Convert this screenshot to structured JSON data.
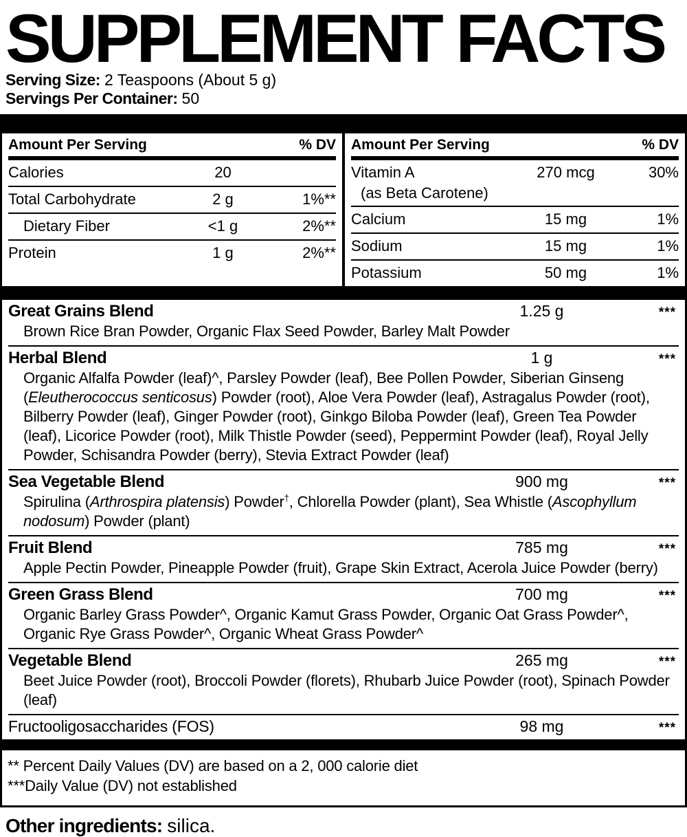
{
  "title": "SUPPLEMENT FACTS",
  "serving": {
    "size_label": "Serving Size:",
    "size_value": "2 Teaspoons (About 5 g)",
    "per_container_label": "Servings Per Container:",
    "per_container_value": "50"
  },
  "columns": {
    "header_amount": "Amount Per Serving",
    "header_dv": "% DV",
    "left_rows": [
      {
        "name": "Calories",
        "amount": "20",
        "dv": ""
      },
      {
        "name": "Total Carbohydrate",
        "amount": "2 g",
        "dv": "1%**"
      },
      {
        "name": "Dietary Fiber",
        "amount": "<1 g",
        "dv": "2%**",
        "indent": true
      },
      {
        "name": "Protein",
        "amount": "1 g",
        "dv": "2%**"
      }
    ],
    "right_rows": [
      {
        "name": "Vitamin A",
        "subname": "(as Beta Carotene)",
        "amount": "270 mcg",
        "dv": "30%"
      },
      {
        "name": "Calcium",
        "amount": "15 mg",
        "dv": "1%"
      },
      {
        "name": "Sodium",
        "amount": "15 mg",
        "dv": "1%"
      },
      {
        "name": "Potassium",
        "amount": "50 mg",
        "dv": "1%"
      }
    ]
  },
  "blends": [
    {
      "name": "Great Grains Blend",
      "amount": "1.25 g",
      "dv": "***",
      "ingredients": [
        {
          "text": "Brown Rice Bran Powder, Organic Flax Seed Powder, Barley Malt Powder"
        }
      ]
    },
    {
      "name": "Herbal Blend",
      "amount": "1 g",
      "dv": "***",
      "ingredients": [
        {
          "text": "Organic Alfalfa Powder (leaf)^, Parsley Powder (leaf), Bee Pollen Powder, Siberian Ginseng ("
        },
        {
          "text": "Eleutherococcus senticosus",
          "italic": true
        },
        {
          "text": ") Powder (root), Aloe Vera Powder (leaf), Astragalus Powder (root), Bilberry Powder (leaf), Ginger Powder (root), Ginkgo Biloba Powder (leaf), Green Tea Powder (leaf), Licorice Powder (root), Milk Thistle Powder (seed), Peppermint Powder (leaf), Royal Jelly Powder, Schisandra Powder (berry), Stevia Extract Powder (leaf)"
        }
      ]
    },
    {
      "name": "Sea Vegetable Blend",
      "amount": "900 mg",
      "dv": "***",
      "ingredients": [
        {
          "text": "Spirulina ("
        },
        {
          "text": "Arthrospira platensis",
          "italic": true
        },
        {
          "text": ") Powder"
        },
        {
          "text": "†",
          "sup": true
        },
        {
          "text": ", Chlorella Powder (plant), Sea Whistle ("
        },
        {
          "text": "Ascophyllum nodosum",
          "italic": true
        },
        {
          "text": ") Powder (plant)"
        }
      ]
    },
    {
      "name": "Fruit Blend",
      "amount": "785 mg",
      "dv": "***",
      "ingredients": [
        {
          "text": "Apple Pectin Powder, Pineapple Powder (fruit), Grape Skin Extract, Acerola Juice Powder (berry)"
        }
      ]
    },
    {
      "name": "Green Grass Blend",
      "amount": "700 mg",
      "dv": "***",
      "ingredients": [
        {
          "text": "Organic Barley Grass Powder^, Organic Kamut Grass Powder, Organic Oat Grass Powder^, Organic Rye Grass Powder^, Organic Wheat Grass Powder^"
        }
      ]
    },
    {
      "name": "Vegetable Blend",
      "amount": "265 mg",
      "dv": "***",
      "ingredients": [
        {
          "text": "Beet Juice Powder (root), Broccoli Powder (florets), Rhubarb Juice Powder (root), Spinach Powder (leaf)"
        }
      ]
    },
    {
      "name": "Fructooligosaccharides (FOS)",
      "amount": "98 mg",
      "dv": "***",
      "name_bold": false
    }
  ],
  "footnotes": [
    "** Percent Daily Values (DV) are based on a 2, 000 calorie diet",
    "***Daily Value (DV) not established"
  ],
  "other_ingredients": {
    "label": "Other ingredients:",
    "value": "silica."
  },
  "colors": {
    "ink": "#000000",
    "background": "#ffffff"
  }
}
